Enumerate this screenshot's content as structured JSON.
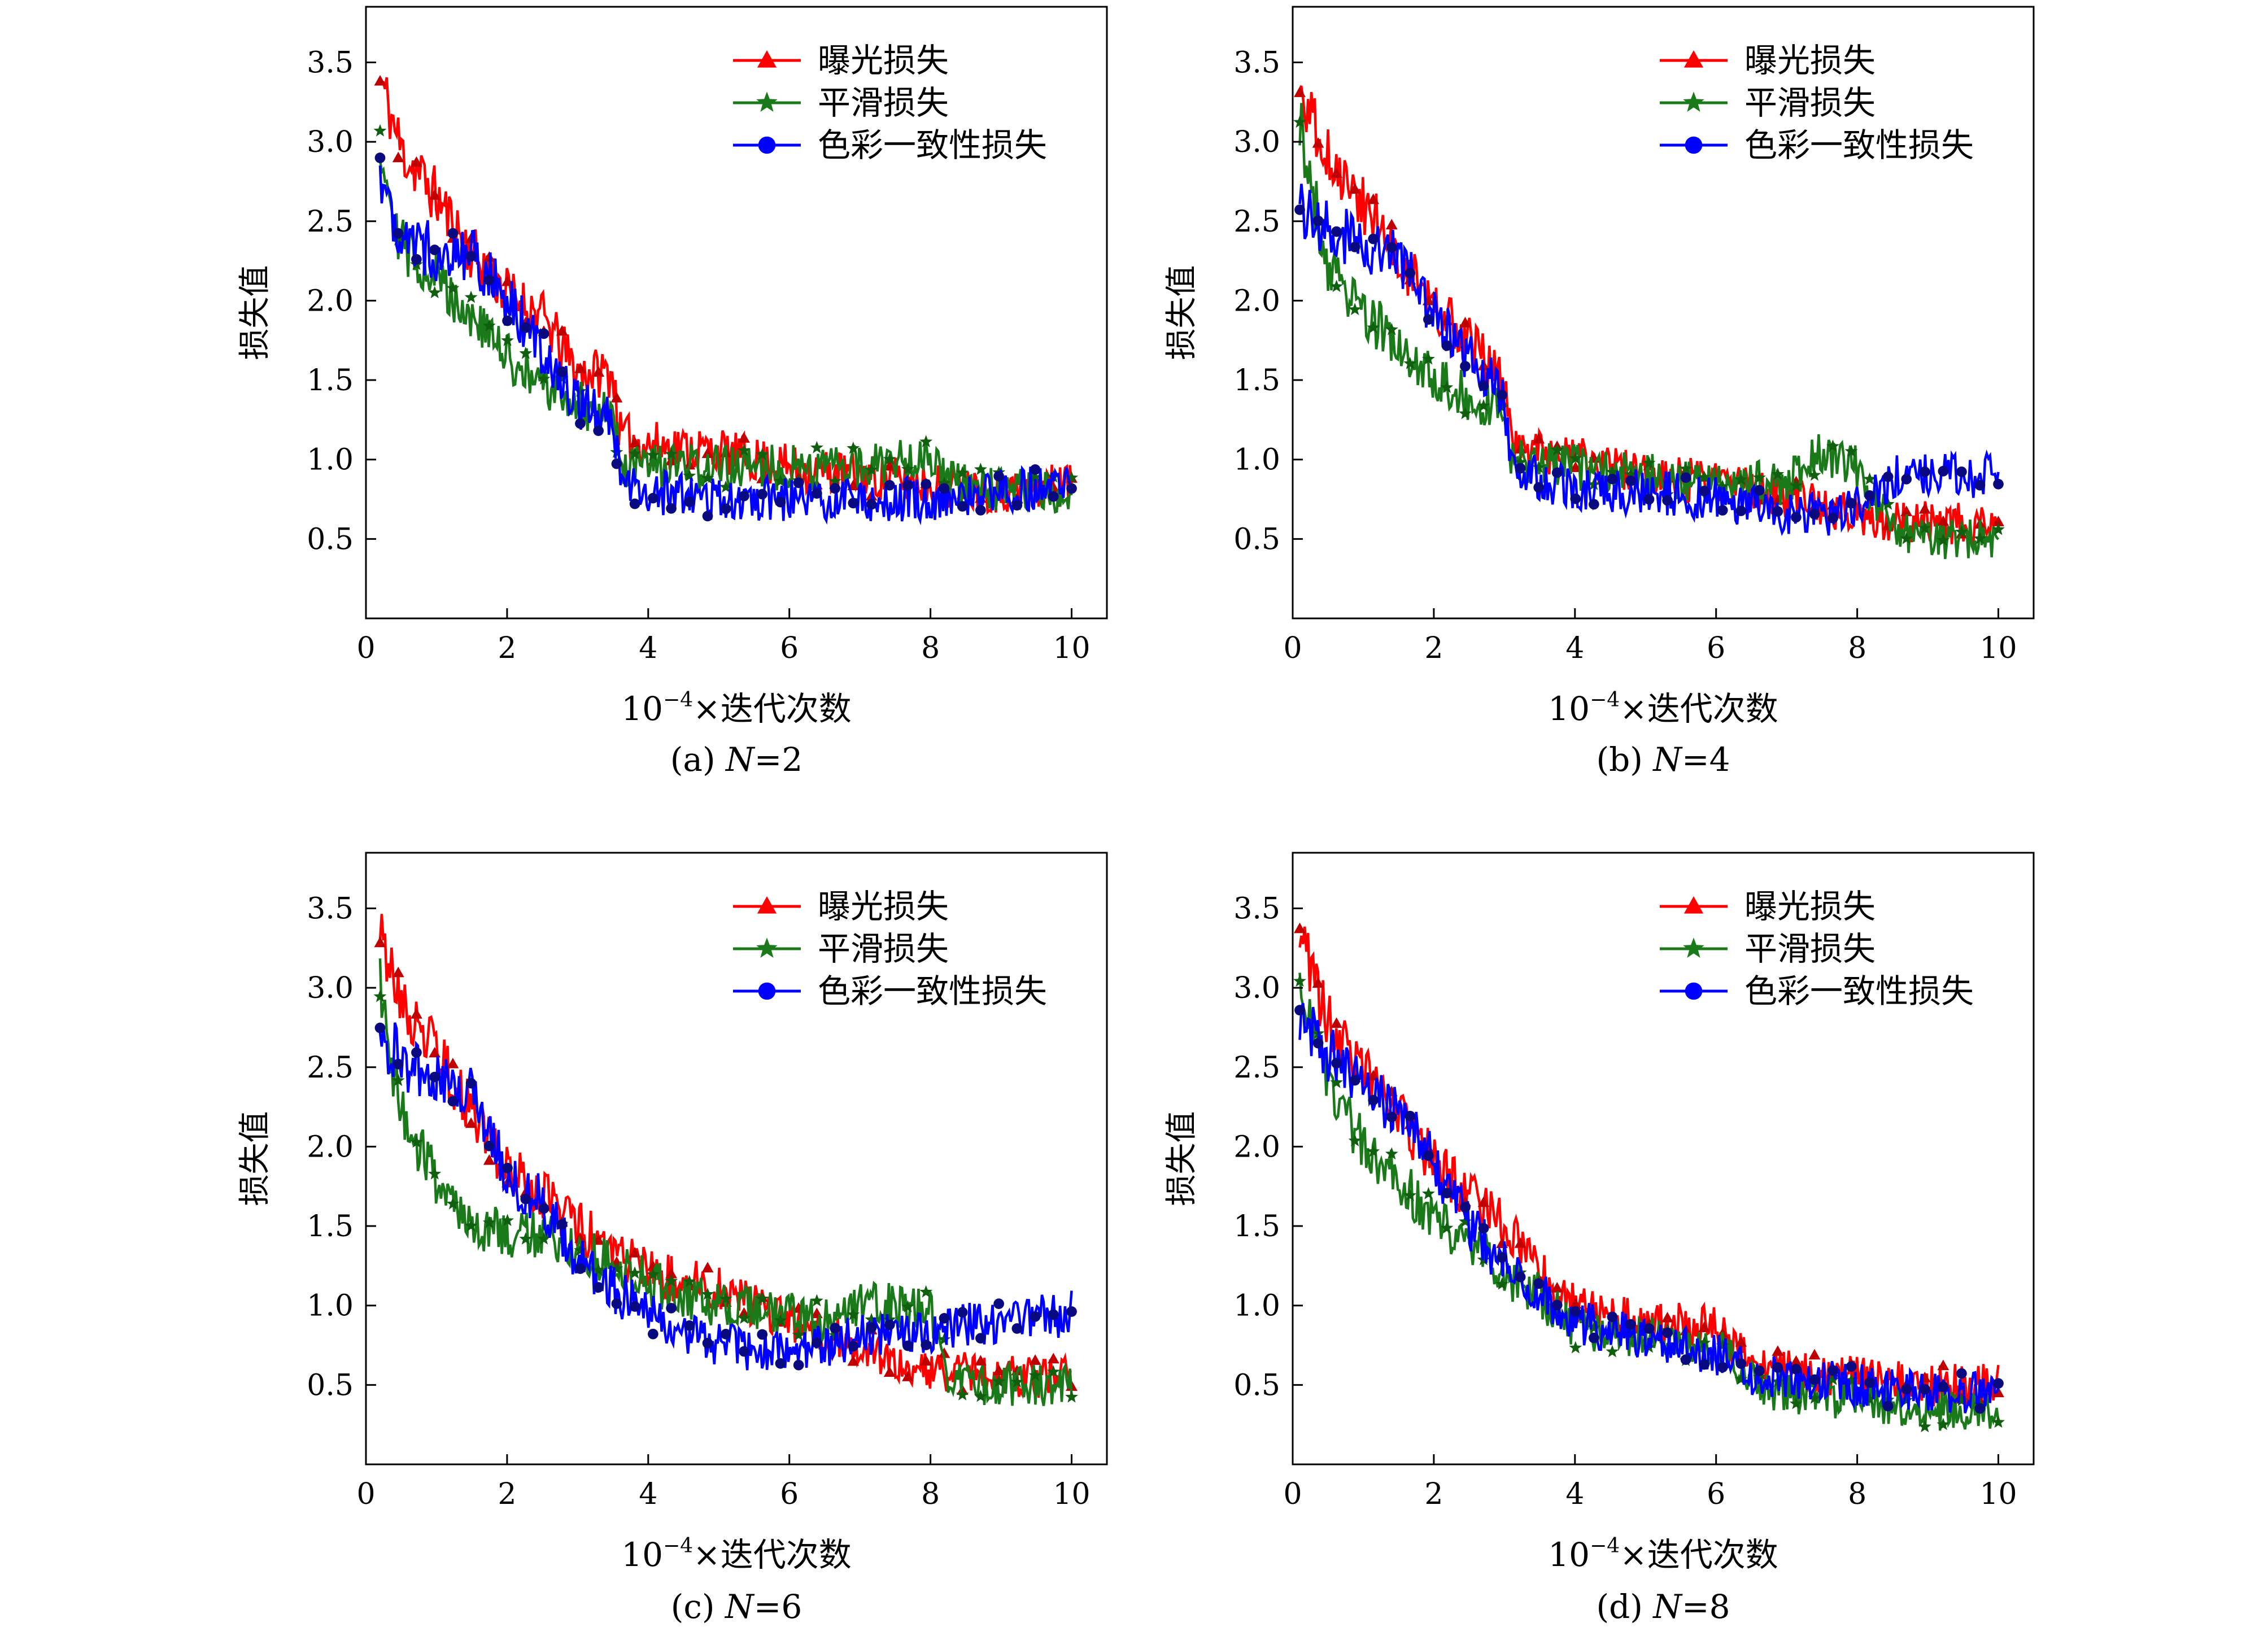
{
  "colors": {
    "exposure": "#ff0000",
    "smooth": "#1a7a1a",
    "color": "#0000ff",
    "color_marker": "#0a0a80",
    "smooth_marker": "#0f5f0f",
    "exposure_marker": "#c00000"
  },
  "chart_data": [
    {
      "type": "line",
      "caption": "(a)  N=2",
      "caption_prefix": "(a)  ",
      "caption_var": "N",
      "caption_value": "=2",
      "xlabel_prefix": "10",
      "xlabel_exp": "−4",
      "xlabel_rest": "×迭代次数",
      "ylabel": "损失值",
      "xlim": [
        0,
        10.5
      ],
      "ylim": [
        0,
        3.85
      ],
      "x_ticks": [
        0,
        2,
        4,
        6,
        8,
        10
      ],
      "x_tick_labels": [
        "0",
        "2",
        "4",
        "6",
        "8",
        "10"
      ],
      "y_ticks": [
        0.5,
        1.0,
        1.5,
        2.0,
        2.5,
        3.0,
        3.5
      ],
      "y_tick_labels": [
        "0.5",
        "1.0",
        "1.5",
        "2.0",
        "2.5",
        "3.0",
        "3.5"
      ],
      "legend_position": "top-right",
      "series": [
        {
          "name": "曝光损失",
          "marker": "triangle",
          "x": [
            0.2,
            0.5,
            1,
            1.5,
            2,
            2.5,
            3,
            3.5,
            3.6,
            4,
            5,
            6,
            7,
            8,
            9,
            10
          ],
          "y": [
            3.4,
            2.95,
            2.65,
            2.3,
            2.05,
            1.9,
            1.55,
            1.55,
            1.15,
            1.1,
            1.05,
            0.95,
            0.9,
            0.85,
            0.8,
            0.85
          ]
        },
        {
          "name": "平滑损失",
          "marker": "star",
          "x": [
            0.2,
            0.5,
            1,
            1.5,
            2,
            2.5,
            3,
            3.5,
            3.6,
            4,
            5,
            6,
            7,
            8,
            8.2,
            9,
            10
          ],
          "y": [
            3.0,
            2.35,
            2.15,
            1.9,
            1.65,
            1.45,
            1.35,
            1.3,
            0.95,
            0.95,
            0.95,
            0.95,
            0.95,
            1.05,
            0.85,
            0.8,
            0.8
          ]
        },
        {
          "name": "色彩一致性损失",
          "marker": "circle",
          "x": [
            0.2,
            0.5,
            1,
            1.5,
            2,
            2.5,
            3,
            3.5,
            3.6,
            4,
            5,
            6,
            7,
            8,
            9,
            10
          ],
          "y": [
            2.8,
            2.4,
            2.3,
            2.3,
            2.0,
            1.7,
            1.35,
            1.25,
            0.85,
            0.8,
            0.75,
            0.75,
            0.75,
            0.75,
            0.8,
            0.85
          ]
        }
      ]
    },
    {
      "type": "line",
      "caption": "(b)  N=4",
      "caption_prefix": "(b)  ",
      "caption_var": "N",
      "caption_value": "=4",
      "xlabel_prefix": "10",
      "xlabel_exp": "−4",
      "xlabel_rest": "×迭代次数",
      "ylabel": "损失值",
      "xlim": [
        0,
        10.5
      ],
      "ylim": [
        0,
        3.85
      ],
      "x_ticks": [
        0,
        2,
        4,
        6,
        8,
        10
      ],
      "x_tick_labels": [
        "0",
        "2",
        "4",
        "6",
        "8",
        "10"
      ],
      "y_ticks": [
        0.5,
        1.0,
        1.5,
        2.0,
        2.5,
        3.0,
        3.5
      ],
      "y_tick_labels": [
        "0.5",
        "1.0",
        "1.5",
        "2.0",
        "2.5",
        "3.0",
        "3.5"
      ],
      "legend_position": "top-right",
      "series": [
        {
          "name": "曝光损失",
          "marker": "triangle",
          "x": [
            0.1,
            0.5,
            1,
            1.5,
            2,
            2.5,
            3,
            3.1,
            4,
            5,
            6,
            7,
            8,
            9,
            10
          ],
          "y": [
            3.3,
            2.9,
            2.6,
            2.3,
            1.95,
            1.75,
            1.45,
            1.1,
            1.0,
            0.9,
            0.85,
            0.75,
            0.65,
            0.6,
            0.6
          ]
        },
        {
          "name": "平滑损失",
          "marker": "star",
          "x": [
            0.1,
            0.5,
            1,
            1.5,
            2,
            2.5,
            3,
            3.1,
            4,
            5,
            6,
            7,
            7.5,
            8,
            8.5,
            9,
            10
          ],
          "y": [
            3.1,
            2.2,
            1.95,
            1.7,
            1.5,
            1.4,
            1.3,
            1.0,
            0.95,
            0.9,
            0.85,
            0.85,
            1.05,
            0.95,
            0.55,
            0.5,
            0.5
          ]
        },
        {
          "name": "色彩一致性损失",
          "marker": "circle",
          "x": [
            0.1,
            0.5,
            1,
            1.5,
            2,
            2.5,
            3,
            3.1,
            4,
            5,
            6,
            7,
            7.5,
            8,
            8.5,
            9,
            10
          ],
          "y": [
            2.6,
            2.45,
            2.35,
            2.3,
            1.9,
            1.65,
            1.4,
            0.95,
            0.8,
            0.8,
            0.75,
            0.65,
            0.65,
            0.7,
            0.9,
            0.9,
            0.9
          ]
        }
      ]
    },
    {
      "type": "line",
      "caption": "(c)  N=6",
      "caption_prefix": "(c)  ",
      "caption_var": "N",
      "caption_value": "=6",
      "xlabel_prefix": "10",
      "xlabel_exp": "−4",
      "xlabel_rest": "×迭代次数",
      "ylabel": "损失值",
      "xlim": [
        0,
        10.5
      ],
      "ylim": [
        0,
        3.85
      ],
      "x_ticks": [
        0,
        2,
        4,
        6,
        8,
        10
      ],
      "x_tick_labels": [
        "0",
        "2",
        "4",
        "6",
        "8",
        "10"
      ],
      "y_ticks": [
        0.5,
        1.0,
        1.5,
        2.0,
        2.5,
        3.0,
        3.5
      ],
      "y_tick_labels": [
        "0.5",
        "1.0",
        "1.5",
        "2.0",
        "2.5",
        "3.0",
        "3.5"
      ],
      "legend_position": "top-right",
      "series": [
        {
          "name": "曝光损失",
          "marker": "triangle",
          "x": [
            0.2,
            0.5,
            1,
            1.5,
            2,
            2.5,
            3,
            3.5,
            4,
            5,
            6,
            7,
            8,
            9,
            10
          ],
          "y": [
            3.4,
            2.9,
            2.6,
            2.2,
            1.85,
            1.7,
            1.5,
            1.35,
            1.2,
            1.1,
            0.9,
            0.75,
            0.6,
            0.55,
            0.55
          ]
        },
        {
          "name": "平滑损失",
          "marker": "star",
          "x": [
            0.2,
            0.5,
            1,
            1.5,
            2,
            2.5,
            3,
            3.5,
            4,
            5,
            6,
            6.5,
            7,
            8,
            8.3,
            9,
            10
          ],
          "y": [
            3.0,
            2.2,
            1.8,
            1.5,
            1.45,
            1.45,
            1.35,
            1.25,
            1.15,
            1.0,
            0.95,
            0.9,
            1.0,
            1.0,
            0.5,
            0.5,
            0.5
          ]
        },
        {
          "name": "色彩一致性损失",
          "marker": "circle",
          "x": [
            0.2,
            0.5,
            1,
            1.5,
            2,
            2.5,
            3,
            3.5,
            4,
            5,
            6,
            7,
            8,
            9,
            10
          ],
          "y": [
            2.7,
            2.55,
            2.4,
            2.4,
            1.8,
            1.65,
            1.3,
            1.1,
            0.95,
            0.75,
            0.7,
            0.8,
            0.85,
            0.9,
            0.95
          ]
        }
      ]
    },
    {
      "type": "line",
      "caption": "(d)  N=8",
      "caption_prefix": "(d)  ",
      "caption_var": "N",
      "caption_value": "=8",
      "xlabel_prefix": "10",
      "xlabel_exp": "−4",
      "xlabel_rest": "×迭代次数",
      "ylabel": "损失值",
      "xlim": [
        0,
        10.5
      ],
      "ylim": [
        0,
        3.85
      ],
      "x_ticks": [
        0,
        2,
        4,
        6,
        8,
        10
      ],
      "x_tick_labels": [
        "0",
        "2",
        "4",
        "6",
        "8",
        "10"
      ],
      "y_ticks": [
        0.5,
        1.0,
        1.5,
        2.0,
        2.5,
        3.0,
        3.5
      ],
      "y_tick_labels": [
        "0.5",
        "1.0",
        "1.5",
        "2.0",
        "2.5",
        "3.0",
        "3.5"
      ],
      "legend_position": "top-right",
      "series": [
        {
          "name": "曝光损失",
          "marker": "triangle",
          "x": [
            0.1,
            0.5,
            1,
            1.5,
            2,
            2.5,
            3,
            3.4,
            4,
            5,
            6,
            6.6,
            7,
            8,
            9,
            10
          ],
          "y": [
            3.3,
            2.8,
            2.45,
            2.2,
            1.9,
            1.7,
            1.5,
            1.25,
            1.0,
            0.9,
            0.85,
            0.6,
            0.6,
            0.55,
            0.5,
            0.5
          ]
        },
        {
          "name": "平滑损失",
          "marker": "star",
          "x": [
            0.1,
            0.5,
            1,
            1.5,
            2,
            2.5,
            3,
            3.4,
            4,
            5,
            6,
            6.6,
            7,
            8,
            9,
            10
          ],
          "y": [
            3.0,
            2.4,
            2.0,
            1.8,
            1.55,
            1.4,
            1.2,
            1.1,
            0.85,
            0.8,
            0.75,
            0.5,
            0.45,
            0.4,
            0.35,
            0.3
          ]
        },
        {
          "name": "色彩一致性损失",
          "marker": "circle",
          "x": [
            0.1,
            0.5,
            1,
            1.5,
            2,
            2.5,
            3,
            3.4,
            4,
            5,
            6,
            6.6,
            7,
            8,
            9,
            10
          ],
          "y": [
            2.8,
            2.6,
            2.4,
            2.2,
            1.9,
            1.5,
            1.25,
            1.1,
            0.9,
            0.8,
            0.7,
            0.55,
            0.55,
            0.5,
            0.45,
            0.45
          ]
        }
      ]
    }
  ]
}
